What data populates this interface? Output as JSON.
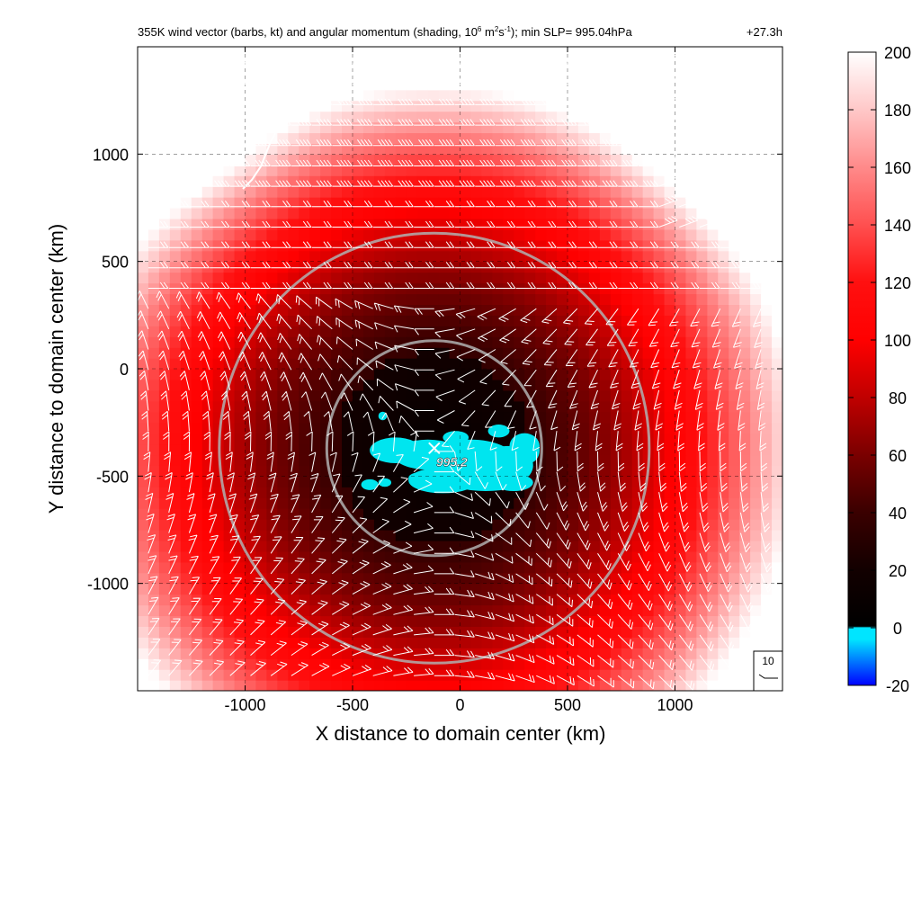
{
  "chart_data": {
    "type": "heatmap",
    "title": {
      "pre": "355K wind vector (barbs, kt) and angular momentum (shading, 10",
      "exp1": "6",
      "mid1": " m",
      "exp2": "2",
      "mid2": "s",
      "exp3": "-1",
      "post": "); min SLP= 995.04hPa",
      "time": "+27.3h"
    },
    "xlabel": "X distance to domain center (km)",
    "ylabel": "Y distance to domain center (km)",
    "xlim": [
      -1500,
      1500
    ],
    "ylim": [
      -1500,
      1500
    ],
    "xticks": [
      -1000,
      -500,
      0,
      500,
      1000
    ],
    "yticks": [
      -1000,
      -500,
      0,
      500,
      1000
    ],
    "grid": true,
    "colorbar": {
      "min": -20,
      "max": 200,
      "ticks": [
        -20,
        0,
        20,
        40,
        60,
        80,
        100,
        120,
        140,
        160,
        180,
        200
      ],
      "stops": [
        {
          "v": -20,
          "c": "#0000ff"
        },
        {
          "v": -4,
          "c": "#00e5ff"
        },
        {
          "v": 0,
          "c": "#00e5ff"
        },
        {
          "v": 0.5,
          "c": "#000000"
        },
        {
          "v": 20,
          "c": "#120000"
        },
        {
          "v": 40,
          "c": "#3a0000"
        },
        {
          "v": 60,
          "c": "#7a0000"
        },
        {
          "v": 80,
          "c": "#c00000"
        },
        {
          "v": 100,
          "c": "#ff0000"
        },
        {
          "v": 120,
          "c": "#ff1010"
        },
        {
          "v": 140,
          "c": "#ff5050"
        },
        {
          "v": 160,
          "c": "#ff8a8a"
        },
        {
          "v": 180,
          "c": "#ffc8c8"
        },
        {
          "v": 200,
          "c": "#ffffff"
        }
      ]
    },
    "storm_center_km": [
      -120,
      -370
    ],
    "slp_label": "995.2",
    "range_rings_km": [
      {
        "center": [
          -120,
          -370
        ],
        "radius": 500
      },
      {
        "center": [
          -120,
          -370
        ],
        "radius": 1000
      }
    ],
    "reference_barb_label": "10",
    "negative_momentum_region_km": {
      "xrange": [
        -500,
        380
      ],
      "yrange": [
        -600,
        -230
      ]
    }
  }
}
